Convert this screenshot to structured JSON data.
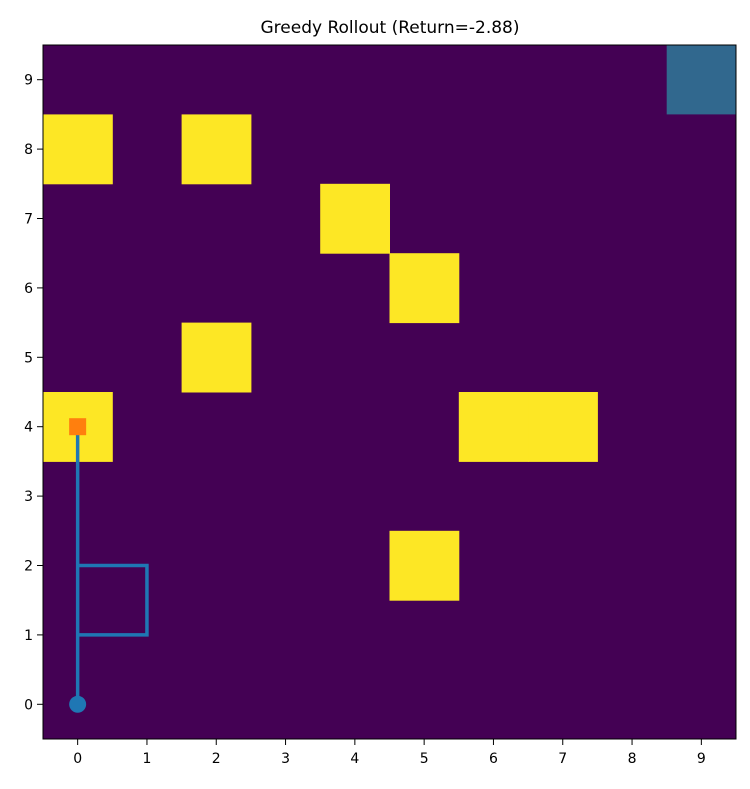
{
  "chart_data": {
    "type": "heatmap",
    "title": "Greedy Rollout (Return=-2.88)",
    "xlabel": "",
    "ylabel": "",
    "grid_size": 10,
    "xlim": [
      -0.5,
      9.5
    ],
    "ylim": [
      -0.5,
      9.5
    ],
    "x_ticks": [
      0,
      1,
      2,
      3,
      4,
      5,
      6,
      7,
      8,
      9
    ],
    "y_ticks": [
      0,
      1,
      2,
      3,
      4,
      5,
      6,
      7,
      8,
      9
    ],
    "x_tick_labels": [
      "0",
      "1",
      "2",
      "3",
      "4",
      "5",
      "6",
      "7",
      "8",
      "9"
    ],
    "y_tick_labels": [
      "0",
      "1",
      "2",
      "3",
      "4",
      "5",
      "6",
      "7",
      "8",
      "9"
    ],
    "grid": false,
    "colors": {
      "background": "#440154",
      "obstacle": "#fde725",
      "goal": "#31688e",
      "path": "#1f77b4",
      "start_marker": "#1f77b4",
      "end_marker": "#ff7f0e"
    },
    "obstacles": [
      {
        "x": 0,
        "y": 8
      },
      {
        "x": 2,
        "y": 8
      },
      {
        "x": 4,
        "y": 7
      },
      {
        "x": 5,
        "y": 6
      },
      {
        "x": 2,
        "y": 5
      },
      {
        "x": 0,
        "y": 4
      },
      {
        "x": 6,
        "y": 4
      },
      {
        "x": 7,
        "y": 4
      },
      {
        "x": 5,
        "y": 2
      }
    ],
    "goal": {
      "x": 9,
      "y": 9
    },
    "path": [
      {
        "x": 0,
        "y": 0
      },
      {
        "x": 0,
        "y": 1
      },
      {
        "x": 0,
        "y": 2
      },
      {
        "x": 1,
        "y": 2
      },
      {
        "x": 1,
        "y": 1
      },
      {
        "x": 0,
        "y": 1
      },
      {
        "x": 0,
        "y": 2
      },
      {
        "x": 0,
        "y": 3
      },
      {
        "x": 0,
        "y": 4
      }
    ],
    "start": {
      "x": 0,
      "y": 0
    },
    "end": {
      "x": 0,
      "y": 4
    }
  }
}
